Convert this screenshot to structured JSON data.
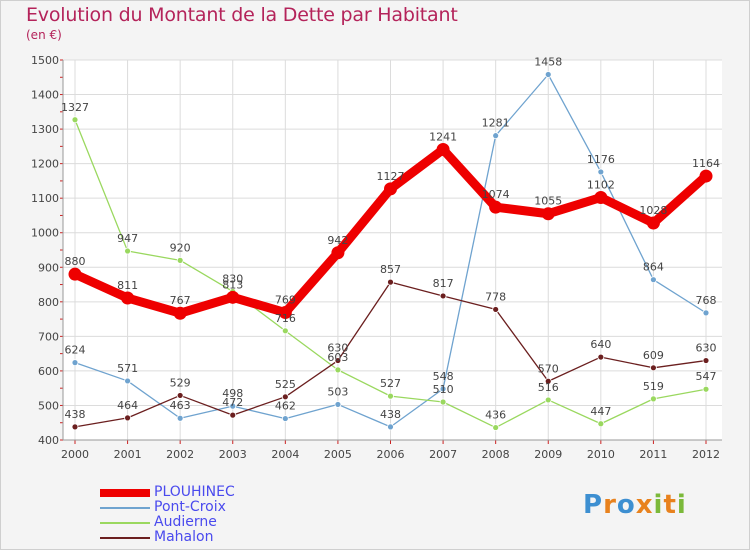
{
  "chart_data": {
    "type": "line",
    "title": "Evolution du Montant de la Dette par Habitant",
    "subtitle": "(en €)",
    "xlabel": "",
    "ylabel": "",
    "x": [
      "2000",
      "2001",
      "2002",
      "2003",
      "2004",
      "2005",
      "2006",
      "2007",
      "2008",
      "2009",
      "2010",
      "2011",
      "2012"
    ],
    "ylim": [
      400,
      1500
    ],
    "yticks": [
      400,
      500,
      600,
      700,
      800,
      900,
      1000,
      1100,
      1200,
      1300,
      1400,
      1500
    ],
    "grid": true,
    "legend_position": "bottom-left",
    "series": [
      {
        "name": "PLOUHINEC",
        "color": "#ee0000",
        "values": [
          880,
          811,
          767,
          813,
          769,
          942,
          1127,
          1241,
          1074,
          1055,
          1102,
          1028,
          1164
        ]
      },
      {
        "name": "Pont-Croix",
        "color": "#6fa3cf",
        "values": [
          624,
          571,
          463,
          498,
          462,
          503,
          438,
          548,
          1281,
          1458,
          1176,
          864,
          768
        ]
      },
      {
        "name": "Audierne",
        "color": "#9ad85f",
        "values": [
          1327,
          947,
          920,
          830,
          716,
          603,
          527,
          510,
          436,
          516,
          447,
          519,
          547
        ]
      },
      {
        "name": "Mahalon",
        "color": "#6b1f1f",
        "values": [
          438,
          464,
          529,
          472,
          525,
          630,
          857,
          817,
          778,
          570,
          640,
          609,
          630
        ]
      }
    ]
  },
  "logo_text": [
    "P",
    "r",
    "o",
    "x",
    "i",
    "t",
    "i"
  ]
}
